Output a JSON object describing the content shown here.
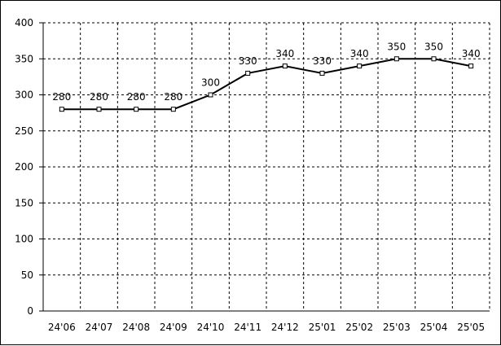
{
  "chart_data": {
    "type": "line",
    "title": "",
    "xlabel": "",
    "ylabel": "",
    "categories": [
      "24'06",
      "24'07",
      "24'08",
      "24'09",
      "24'10",
      "24'11",
      "24'12",
      "25'01",
      "25'02",
      "25'03",
      "25'04",
      "25'05"
    ],
    "series": [
      {
        "values": [
          280,
          280,
          280,
          280,
          300,
          330,
          340,
          330,
          340,
          350,
          350,
          340
        ]
      }
    ],
    "ylim": [
      0,
      400
    ],
    "yticks": [
      0,
      50,
      100,
      150,
      200,
      250,
      300,
      350,
      400
    ],
    "grid": true,
    "grid_style": "dashed",
    "data_labels": true,
    "legend": "none",
    "line_color": "#000000",
    "marker": "hollow-square"
  }
}
